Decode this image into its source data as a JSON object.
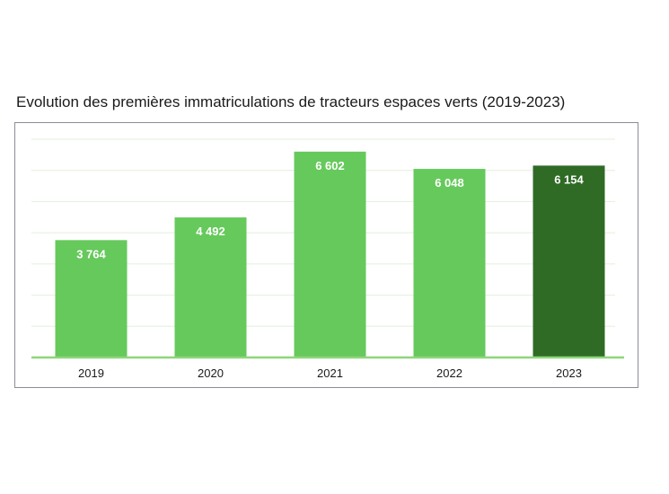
{
  "title": "Evolution des premières immatriculations de tracteurs espaces verts (2019-2023)",
  "chart_data": {
    "type": "bar",
    "title": "Evolution des premières immatriculations de tracteurs espaces verts (2019-2023)",
    "xlabel": "",
    "ylabel": "",
    "categories": [
      "2019",
      "2020",
      "2021",
      "2022",
      "2023"
    ],
    "values": [
      3764,
      4492,
      6602,
      6048,
      6154
    ],
    "value_labels": [
      "3 764",
      "4 492",
      "6  602",
      "6 048",
      "6 154"
    ],
    "ylim": [
      0,
      7000
    ],
    "gridlines": true,
    "y_tick_labels_shown": false,
    "legend": "none",
    "colors": {
      "bar": "#66c95c",
      "bar_highlight": "#2f6b25",
      "highlight_category": "2023",
      "grid": "#e2efdb",
      "axis": "#8fd67a",
      "value_label": "#ffffff"
    }
  }
}
